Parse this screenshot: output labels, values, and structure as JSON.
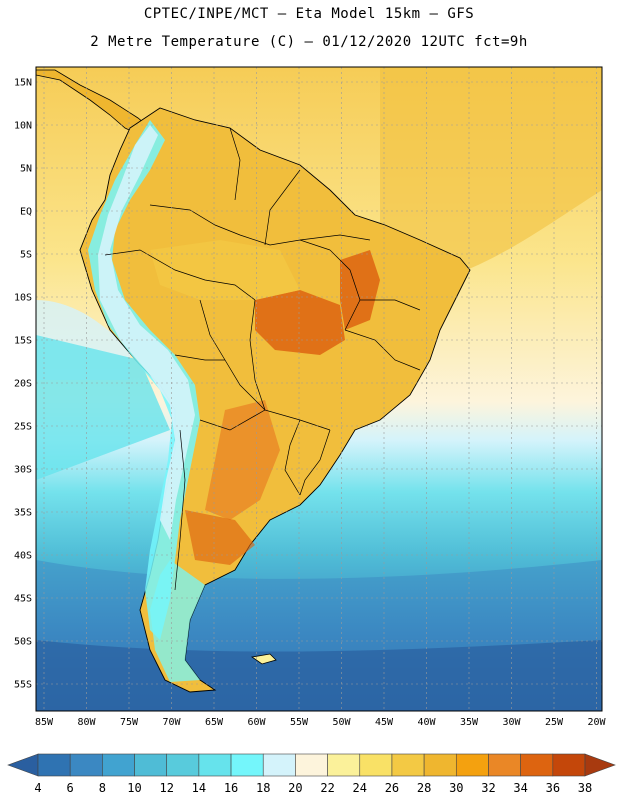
{
  "header": {
    "line1": "CPTEC/INPE/MCT –  Eta Model 15km – GFS",
    "line2": "2 Metre Temperature (C) – 01/12/2020 12UTC fct=9h"
  },
  "map": {
    "lat_labels": [
      "15N",
      "10N",
      "5N",
      "EQ",
      "5S",
      "10S",
      "15S",
      "20S",
      "25S",
      "30S",
      "35S",
      "40S",
      "45S",
      "50S",
      "55S"
    ],
    "lon_labels": [
      "85W",
      "80W",
      "75W",
      "70W",
      "65W",
      "60W",
      "55W",
      "50W",
      "45W",
      "40W",
      "35W",
      "30W",
      "25W",
      "20W"
    ]
  },
  "colorbar": {
    "labels": [
      "4",
      "6",
      "8",
      "10",
      "12",
      "14",
      "16",
      "18",
      "20",
      "22",
      "24",
      "26",
      "28",
      "30",
      "32",
      "34",
      "36",
      "38"
    ],
    "colors": [
      "#2a5fa0",
      "#2f73b2",
      "#3b88c2",
      "#41a3d0",
      "#4fbcd6",
      "#58cbdc",
      "#66e3ec",
      "#74f6fb",
      "#d4f3fb",
      "#fdf4dc",
      "#fbf19a",
      "#f9e166",
      "#f3c944",
      "#efb62f",
      "#f4a10f",
      "#ea8726",
      "#dd6410",
      "#c4470a",
      "#a83a0f"
    ]
  }
}
